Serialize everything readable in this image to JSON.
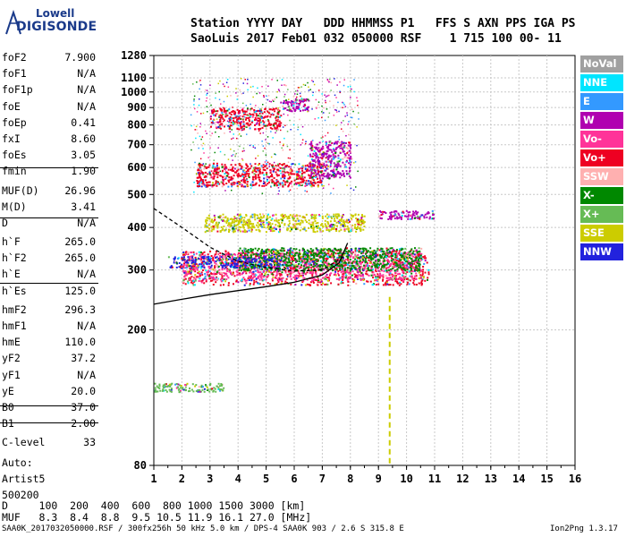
{
  "logo": {
    "line1": "Lowell",
    "line2": "DIGISONDE"
  },
  "header": {
    "line1": "Station YYYY DAY   DDD HHMMSS P1   FFS S AXN PPS IGA PS",
    "line2": "SaoLuis 2017 Feb01 032 050000 RSF    1 715 100 00- 11"
  },
  "params": [
    {
      "k": "foF2",
      "v": "7.900"
    },
    {
      "k": "foF1",
      "v": "N/A"
    },
    {
      "k": "foF1p",
      "v": "N/A"
    },
    {
      "k": "foE",
      "v": "N/A"
    },
    {
      "k": "foEp",
      "v": "0.41"
    },
    {
      "k": "fxI",
      "v": "8.60"
    },
    {
      "k": "foEs",
      "v": "3.05"
    },
    {
      "k": "fmin",
      "v": "1.90"
    },
    {
      "k": "MUF(D)",
      "v": "26.96"
    },
    {
      "k": "M(D)",
      "v": "3.41"
    },
    {
      "k": "D",
      "v": "N/A"
    },
    {
      "k": "h`F",
      "v": "265.0"
    },
    {
      "k": "h`F2",
      "v": "265.0"
    },
    {
      "k": "h`E",
      "v": "N/A"
    },
    {
      "k": "h`Es",
      "v": "125.0"
    },
    {
      "k": "hmF2",
      "v": "296.3"
    },
    {
      "k": "hmF1",
      "v": "N/A"
    },
    {
      "k": "hmE",
      "v": "110.0"
    },
    {
      "k": "yF2",
      "v": "37.2"
    },
    {
      "k": "yF1",
      "v": "N/A"
    },
    {
      "k": "yE",
      "v": "20.0"
    },
    {
      "k": "B0",
      "v": "37.0"
    },
    {
      "k": "B1",
      "v": "2.00"
    },
    {
      "k": "C-level",
      "v": "33"
    },
    {
      "k": "Auto:",
      "v": ""
    },
    {
      "k": "Artist5",
      "v": ""
    },
    {
      "k": "500200",
      "v": ""
    }
  ],
  "footer": {
    "d_line": "D     100  200  400  600  800 1000 1500 3000 [km]",
    "muf_line": "MUF   8.3  8.4  8.8  9.5 10.5 11.9 16.1 27.0 [MHz]",
    "source": "SAA0K_2017032050000.RSF / 300fx256h 50 kHz 5.0 km / DPS-4 SAA0K 903 / 2.6 S 315.8 E",
    "version": "Ion2Png 1.3.17"
  },
  "legend": [
    {
      "label": "NoVal",
      "color": "#a0a0a0"
    },
    {
      "label": "NNE",
      "color": "#00e5ff"
    },
    {
      "label": "E",
      "color": "#3399ff"
    },
    {
      "label": "W",
      "color": "#b000b0"
    },
    {
      "label": "Vo-",
      "color": "#ff3399"
    },
    {
      "label": "Vo+",
      "color": "#ee0022"
    },
    {
      "label": "SSW",
      "color": "#ffb0b0"
    },
    {
      "label": "X-",
      "color": "#008800"
    },
    {
      "label": "X+",
      "color": "#66bb55"
    },
    {
      "label": "SSE",
      "color": "#cccc00"
    },
    {
      "label": "NNW",
      "color": "#2222dd"
    }
  ],
  "chart_data": {
    "type": "scatter",
    "xlim": [
      1,
      16
    ],
    "x_ticks": [
      "1",
      "2",
      "3",
      "4",
      "5",
      "6",
      "7",
      "8",
      "9",
      "10",
      "11",
      "12",
      "13",
      "14",
      "15",
      "16"
    ],
    "ylim": [
      80,
      1280
    ],
    "y_scale": "log",
    "y_ticks": [
      80,
      200,
      300,
      400,
      500,
      600,
      700,
      800,
      900,
      1000,
      1100,
      1280
    ],
    "grid": true,
    "clusters": [
      {
        "color": "#ee0022",
        "x": [
          2.0,
          10.8
        ],
        "y": [
          272,
          345
        ]
      },
      {
        "color": "#ff3399",
        "x": [
          2.0,
          10.5
        ],
        "y": [
          280,
          340
        ]
      },
      {
        "color": "#008800",
        "x": [
          4.0,
          10.5
        ],
        "y": [
          300,
          350
        ]
      },
      {
        "color": "#2222dd",
        "x": [
          1.5,
          5.5
        ],
        "y": [
          305,
          330
        ]
      },
      {
        "color": "#cccc00",
        "x": [
          2.8,
          8.5
        ],
        "y": [
          390,
          440
        ]
      },
      {
        "color": "#b000b0",
        "x": [
          9.0,
          11.0
        ],
        "y": [
          425,
          450
        ]
      },
      {
        "color": "#ee0022",
        "x": [
          2.5,
          7.0
        ],
        "y": [
          530,
          620
        ]
      },
      {
        "color": "#b000b0",
        "x": [
          6.5,
          8.0
        ],
        "y": [
          560,
          720
        ]
      },
      {
        "color": "#ee0022",
        "x": [
          3.0,
          5.5
        ],
        "y": [
          780,
          900
        ]
      },
      {
        "color": "#b000b0",
        "x": [
          5.5,
          6.5
        ],
        "y": [
          880,
          960
        ]
      },
      {
        "color": "#66bb55",
        "x": [
          1.0,
          3.5
        ],
        "y": [
          132,
          140
        ]
      }
    ],
    "curves": [
      {
        "name": "trace",
        "x": [
          1.0,
          2.0,
          3.0,
          4.0,
          5.0,
          6.0,
          7.0,
          7.6,
          7.9
        ],
        "y": [
          238,
          246,
          254,
          261,
          268,
          276,
          290,
          315,
          360
        ]
      },
      {
        "name": "x-trace",
        "x": [
          1.0,
          2.0,
          3.0,
          4.0,
          5.0,
          6.0,
          7.0,
          7.8
        ],
        "y": [
          455,
          400,
          350,
          318,
          305,
          298,
          300,
          330
        ]
      }
    ],
    "marker_x": 9.4
  }
}
